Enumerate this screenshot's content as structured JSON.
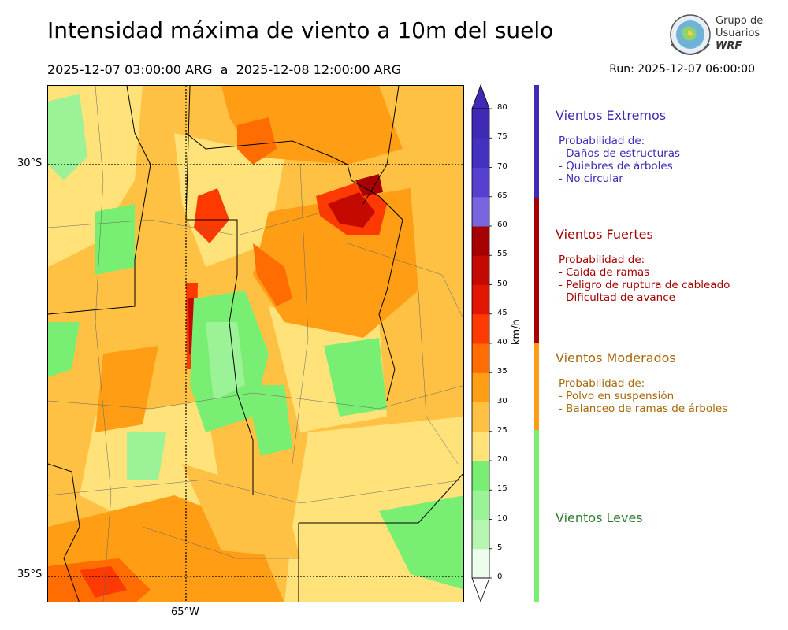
{
  "header": {
    "title": "Intensidad máxima de viento a 10m del suelo",
    "period": "2025-12-07 03:00:00 ARG  a  2025-12-08 12:00:00 ARG",
    "run": "Run: 2025-12-07 06:00:00"
  },
  "logo": {
    "line1": "Grupo de",
    "line2": "Usuarios",
    "line3": "WRF"
  },
  "map": {
    "lat_labels": [
      "30°S",
      "35°S"
    ],
    "lon_labels": [
      "65°W"
    ],
    "field": "viento máximo 10m"
  },
  "colorbar": {
    "unit": "km/h",
    "ticks": [
      "0",
      "5",
      "10",
      "15",
      "20",
      "25",
      "30",
      "35",
      "40",
      "45",
      "50",
      "55",
      "60",
      "65",
      "70",
      "75",
      "80"
    ],
    "colors": [
      "#edfded",
      "#d5f9d3",
      "#b7f5b3",
      "#9cf296",
      "#78ef72",
      "#ffe27a",
      "#ffc144",
      "#ff9d15",
      "#ff6c02",
      "#fe3a02",
      "#e31701",
      "#c40a00",
      "#a60000",
      "#7765e0",
      "#5640cf",
      "#4431c2",
      "#3e2ab5"
    ],
    "extend": "both"
  },
  "categories": [
    {
      "title": "Vientos Extremos",
      "color": "#3e2ab5",
      "bar_color": "#3e2ab5",
      "lines": [
        "Probabilidad de:",
        "- Daños de estructuras",
        "- Quiebres de árboles",
        "- No circular"
      ]
    },
    {
      "title": "Vientos Fuertes",
      "color": "#a60000",
      "bar_color": "#a60000",
      "lines": [
        "Probabilidad de:",
        "- Caida de ramas",
        "- Peligro de ruptura de cableado",
        "- Dificultad de avance"
      ]
    },
    {
      "title": "Vientos Moderados",
      "color": "#a8680a",
      "bar_color": "#ff9d15",
      "lines": [
        "Probabilidad de:",
        "- Polvo en suspensión",
        "- Balanceo de ramas de árboles"
      ]
    },
    {
      "title": "Vientos Leves",
      "color": "#2f7d2f",
      "bar_color": "#78ef72",
      "lines": []
    }
  ]
}
